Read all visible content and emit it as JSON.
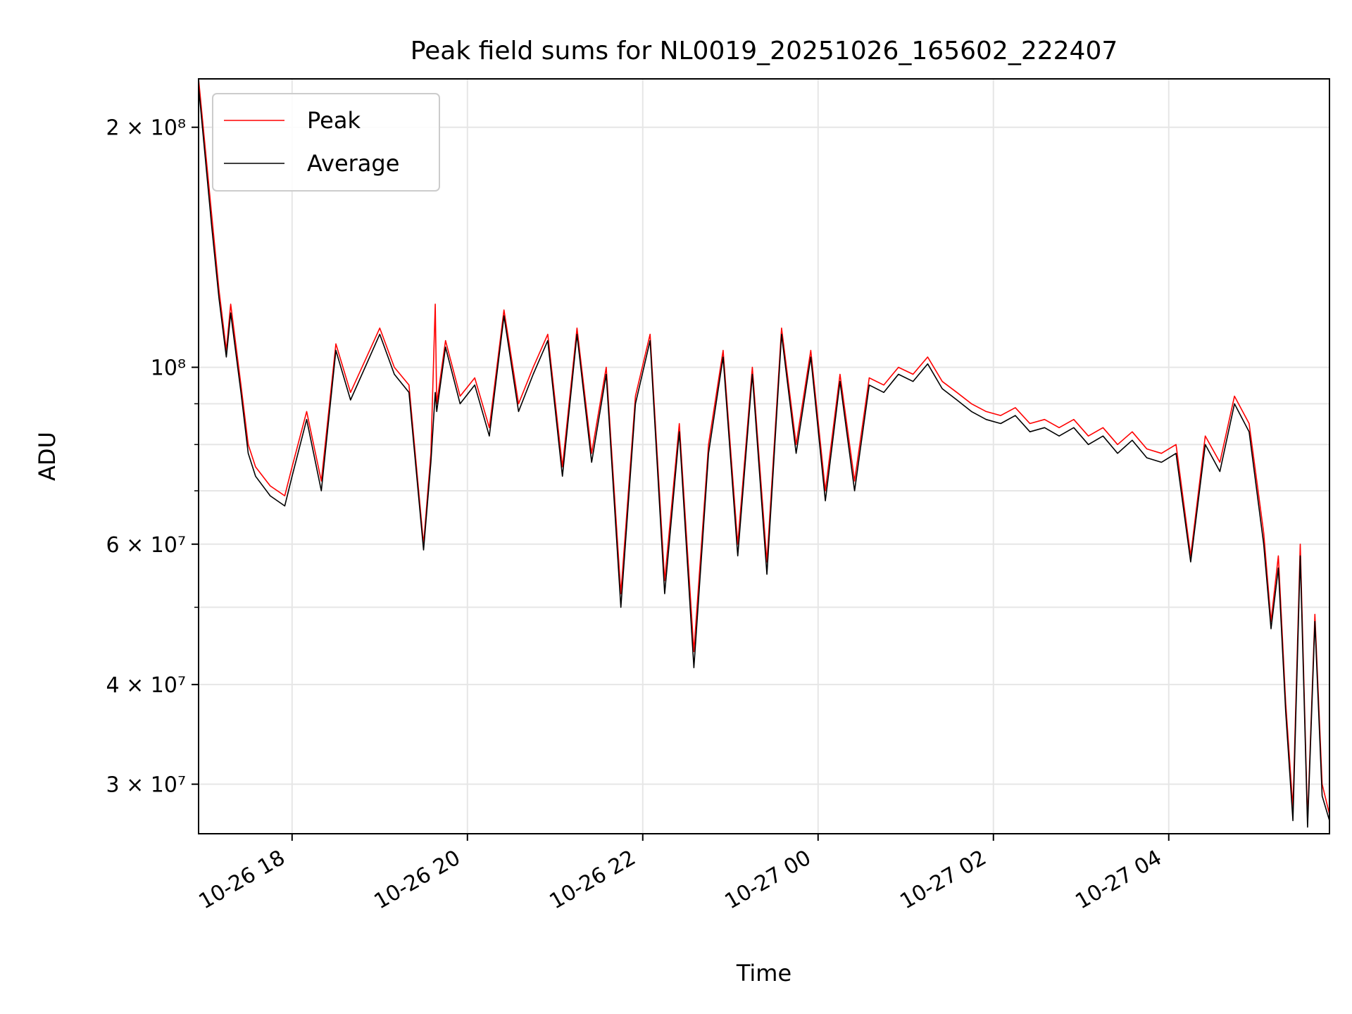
{
  "chart_data": {
    "type": "line",
    "title": "Peak field sums for NL0019_20251026_165602_222407",
    "xlabel": "Time",
    "ylabel": "ADU",
    "yscale": "log",
    "xlim": [
      "2025-10-26 16:56",
      "2025-10-27 05:50"
    ],
    "ylim": [
      26000000,
      230000000
    ],
    "grid": true,
    "legend": {
      "placement": "top-left",
      "entries": [
        "Peak",
        "Average"
      ]
    },
    "x_ticks": [
      {
        "value": "2025-10-26 18:00",
        "label": "10-26 18"
      },
      {
        "value": "2025-10-26 20:00",
        "label": "10-26 20"
      },
      {
        "value": "2025-10-26 22:00",
        "label": "10-26 22"
      },
      {
        "value": "2025-10-27 00:00",
        "label": "10-27 00"
      },
      {
        "value": "2025-10-27 02:00",
        "label": "10-27 02"
      },
      {
        "value": "2025-10-27 04:00",
        "label": "10-27 04"
      }
    ],
    "y_ticks": [
      {
        "value": 200000000,
        "label": "2 × 10⁸"
      },
      {
        "value": 100000000,
        "label": "10⁸"
      },
      {
        "value": 60000000,
        "label": "6 × 10⁷"
      },
      {
        "value": 40000000,
        "label": "4 × 10⁷"
      },
      {
        "value": 30000000,
        "label": "3 × 10⁷"
      }
    ],
    "y_minor_grid": [
      50000000,
      70000000,
      80000000,
      90000000
    ],
    "series": [
      {
        "name": "Peak",
        "color": "#ff0000",
        "points": [
          [
            "2025-10-26 16:56",
            230000000
          ],
          [
            "2025-10-26 17:05",
            155000000
          ],
          [
            "2025-10-26 17:10",
            125000000
          ],
          [
            "2025-10-26 17:15",
            105000000
          ],
          [
            "2025-10-26 17:18",
            120000000
          ],
          [
            "2025-10-26 17:25",
            95000000
          ],
          [
            "2025-10-26 17:30",
            80000000
          ],
          [
            "2025-10-26 17:35",
            75000000
          ],
          [
            "2025-10-26 17:45",
            71000000
          ],
          [
            "2025-10-26 17:55",
            69000000
          ],
          [
            "2025-10-26 18:00",
            75000000
          ],
          [
            "2025-10-26 18:10",
            88000000
          ],
          [
            "2025-10-26 18:20",
            72000000
          ],
          [
            "2025-10-26 18:30",
            107000000
          ],
          [
            "2025-10-26 18:40",
            93000000
          ],
          [
            "2025-10-26 18:50",
            102000000
          ],
          [
            "2025-10-26 19:00",
            112000000
          ],
          [
            "2025-10-26 19:10",
            100000000
          ],
          [
            "2025-10-26 19:20",
            95000000
          ],
          [
            "2025-10-26 19:30",
            60000000
          ],
          [
            "2025-10-26 19:35",
            78000000
          ],
          [
            "2025-10-26 19:38",
            120000000
          ],
          [
            "2025-10-26 19:39",
            90000000
          ],
          [
            "2025-10-26 19:45",
            108000000
          ],
          [
            "2025-10-26 19:55",
            92000000
          ],
          [
            "2025-10-26 20:05",
            97000000
          ],
          [
            "2025-10-26 20:15",
            84000000
          ],
          [
            "2025-10-26 20:25",
            118000000
          ],
          [
            "2025-10-26 20:35",
            90000000
          ],
          [
            "2025-10-26 20:45",
            100000000
          ],
          [
            "2025-10-26 20:55",
            110000000
          ],
          [
            "2025-10-26 21:05",
            75000000
          ],
          [
            "2025-10-26 21:15",
            112000000
          ],
          [
            "2025-10-26 21:25",
            78000000
          ],
          [
            "2025-10-26 21:35",
            100000000
          ],
          [
            "2025-10-26 21:45",
            52000000
          ],
          [
            "2025-10-26 21:55",
            92000000
          ],
          [
            "2025-10-26 22:05",
            110000000
          ],
          [
            "2025-10-26 22:15",
            54000000
          ],
          [
            "2025-10-26 22:25",
            85000000
          ],
          [
            "2025-10-26 22:35",
            44000000
          ],
          [
            "2025-10-26 22:45",
            80000000
          ],
          [
            "2025-10-26 22:55",
            105000000
          ],
          [
            "2025-10-26 23:05",
            60000000
          ],
          [
            "2025-10-26 23:15",
            100000000
          ],
          [
            "2025-10-26 23:25",
            57000000
          ],
          [
            "2025-10-26 23:35",
            112000000
          ],
          [
            "2025-10-26 23:45",
            80000000
          ],
          [
            "2025-10-26 23:55",
            105000000
          ],
          [
            "2025-10-27 00:05",
            70000000
          ],
          [
            "2025-10-27 00:15",
            98000000
          ],
          [
            "2025-10-27 00:25",
            72000000
          ],
          [
            "2025-10-27 00:35",
            97000000
          ],
          [
            "2025-10-27 00:45",
            95000000
          ],
          [
            "2025-10-27 00:55",
            100000000
          ],
          [
            "2025-10-27 01:05",
            98000000
          ],
          [
            "2025-10-27 01:15",
            103000000
          ],
          [
            "2025-10-27 01:25",
            96000000
          ],
          [
            "2025-10-27 01:35",
            93000000
          ],
          [
            "2025-10-27 01:45",
            90000000
          ],
          [
            "2025-10-27 01:55",
            88000000
          ],
          [
            "2025-10-27 02:05",
            87000000
          ],
          [
            "2025-10-27 02:15",
            89000000
          ],
          [
            "2025-10-27 02:25",
            85000000
          ],
          [
            "2025-10-27 02:35",
            86000000
          ],
          [
            "2025-10-27 02:45",
            84000000
          ],
          [
            "2025-10-27 02:55",
            86000000
          ],
          [
            "2025-10-27 03:05",
            82000000
          ],
          [
            "2025-10-27 03:15",
            84000000
          ],
          [
            "2025-10-27 03:25",
            80000000
          ],
          [
            "2025-10-27 03:35",
            83000000
          ],
          [
            "2025-10-27 03:45",
            79000000
          ],
          [
            "2025-10-27 03:55",
            78000000
          ],
          [
            "2025-10-27 04:05",
            80000000
          ],
          [
            "2025-10-27 04:15",
            58000000
          ],
          [
            "2025-10-27 04:25",
            82000000
          ],
          [
            "2025-10-27 04:35",
            76000000
          ],
          [
            "2025-10-27 04:45",
            92000000
          ],
          [
            "2025-10-27 04:55",
            85000000
          ],
          [
            "2025-10-27 05:05",
            62000000
          ],
          [
            "2025-10-27 05:10",
            48000000
          ],
          [
            "2025-10-27 05:15",
            58000000
          ],
          [
            "2025-10-27 05:20",
            38000000
          ],
          [
            "2025-10-27 05:25",
            28000000
          ],
          [
            "2025-10-27 05:30",
            60000000
          ],
          [
            "2025-10-27 05:35",
            27000000
          ],
          [
            "2025-10-27 05:40",
            49000000
          ],
          [
            "2025-10-27 05:45",
            30000000
          ],
          [
            "2025-10-27 05:50",
            27500000
          ]
        ]
      },
      {
        "name": "Average",
        "color": "#000000",
        "points": [
          [
            "2025-10-26 16:56",
            225000000
          ],
          [
            "2025-10-26 17:05",
            150000000
          ],
          [
            "2025-10-26 17:10",
            122000000
          ],
          [
            "2025-10-26 17:15",
            103000000
          ],
          [
            "2025-10-26 17:18",
            117000000
          ],
          [
            "2025-10-26 17:25",
            93000000
          ],
          [
            "2025-10-26 17:30",
            78000000
          ],
          [
            "2025-10-26 17:35",
            73000000
          ],
          [
            "2025-10-26 17:45",
            69000000
          ],
          [
            "2025-10-26 17:55",
            67000000
          ],
          [
            "2025-10-26 18:00",
            73000000
          ],
          [
            "2025-10-26 18:10",
            86000000
          ],
          [
            "2025-10-26 18:20",
            70000000
          ],
          [
            "2025-10-26 18:30",
            105000000
          ],
          [
            "2025-10-26 18:40",
            91000000
          ],
          [
            "2025-10-26 18:50",
            100000000
          ],
          [
            "2025-10-26 19:00",
            110000000
          ],
          [
            "2025-10-26 19:10",
            98000000
          ],
          [
            "2025-10-26 19:20",
            93000000
          ],
          [
            "2025-10-26 19:30",
            59000000
          ],
          [
            "2025-10-26 19:35",
            76000000
          ],
          [
            "2025-10-26 19:38",
            93000000
          ],
          [
            "2025-10-26 19:39",
            88000000
          ],
          [
            "2025-10-26 19:45",
            106000000
          ],
          [
            "2025-10-26 19:55",
            90000000
          ],
          [
            "2025-10-26 20:05",
            95000000
          ],
          [
            "2025-10-26 20:15",
            82000000
          ],
          [
            "2025-10-26 20:25",
            116000000
          ],
          [
            "2025-10-26 20:35",
            88000000
          ],
          [
            "2025-10-26 20:45",
            98000000
          ],
          [
            "2025-10-26 20:55",
            108000000
          ],
          [
            "2025-10-26 21:05",
            73000000
          ],
          [
            "2025-10-26 21:15",
            110000000
          ],
          [
            "2025-10-26 21:25",
            76000000
          ],
          [
            "2025-10-26 21:35",
            98000000
          ],
          [
            "2025-10-26 21:45",
            50000000
          ],
          [
            "2025-10-26 21:55",
            90000000
          ],
          [
            "2025-10-26 22:05",
            108000000
          ],
          [
            "2025-10-26 22:15",
            52000000
          ],
          [
            "2025-10-26 22:25",
            83000000
          ],
          [
            "2025-10-26 22:35",
            42000000
          ],
          [
            "2025-10-26 22:45",
            78000000
          ],
          [
            "2025-10-26 22:55",
            103000000
          ],
          [
            "2025-10-26 23:05",
            58000000
          ],
          [
            "2025-10-26 23:15",
            98000000
          ],
          [
            "2025-10-26 23:25",
            55000000
          ],
          [
            "2025-10-26 23:35",
            110000000
          ],
          [
            "2025-10-26 23:45",
            78000000
          ],
          [
            "2025-10-26 23:55",
            103000000
          ],
          [
            "2025-10-27 00:05",
            68000000
          ],
          [
            "2025-10-27 00:15",
            96000000
          ],
          [
            "2025-10-27 00:25",
            70000000
          ],
          [
            "2025-10-27 00:35",
            95000000
          ],
          [
            "2025-10-27 00:45",
            93000000
          ],
          [
            "2025-10-27 00:55",
            98000000
          ],
          [
            "2025-10-27 01:05",
            96000000
          ],
          [
            "2025-10-27 01:15",
            101000000
          ],
          [
            "2025-10-27 01:25",
            94000000
          ],
          [
            "2025-10-27 01:35",
            91000000
          ],
          [
            "2025-10-27 01:45",
            88000000
          ],
          [
            "2025-10-27 01:55",
            86000000
          ],
          [
            "2025-10-27 02:05",
            85000000
          ],
          [
            "2025-10-27 02:15",
            87000000
          ],
          [
            "2025-10-27 02:25",
            83000000
          ],
          [
            "2025-10-27 02:35",
            84000000
          ],
          [
            "2025-10-27 02:45",
            82000000
          ],
          [
            "2025-10-27 02:55",
            84000000
          ],
          [
            "2025-10-27 03:05",
            80000000
          ],
          [
            "2025-10-27 03:15",
            82000000
          ],
          [
            "2025-10-27 03:25",
            78000000
          ],
          [
            "2025-10-27 03:35",
            81000000
          ],
          [
            "2025-10-27 03:45",
            77000000
          ],
          [
            "2025-10-27 03:55",
            76000000
          ],
          [
            "2025-10-27 04:05",
            78000000
          ],
          [
            "2025-10-27 04:15",
            57000000
          ],
          [
            "2025-10-27 04:25",
            80000000
          ],
          [
            "2025-10-27 04:35",
            74000000
          ],
          [
            "2025-10-27 04:45",
            90000000
          ],
          [
            "2025-10-27 04:55",
            83000000
          ],
          [
            "2025-10-27 05:05",
            60000000
          ],
          [
            "2025-10-27 05:10",
            47000000
          ],
          [
            "2025-10-27 05:15",
            56000000
          ],
          [
            "2025-10-27 05:20",
            37000000
          ],
          [
            "2025-10-27 05:25",
            27000000
          ],
          [
            "2025-10-27 05:30",
            58000000
          ],
          [
            "2025-10-27 05:35",
            26500000
          ],
          [
            "2025-10-27 05:40",
            48000000
          ],
          [
            "2025-10-27 05:45",
            29000000
          ],
          [
            "2025-10-27 05:50",
            27000000
          ]
        ]
      }
    ]
  }
}
